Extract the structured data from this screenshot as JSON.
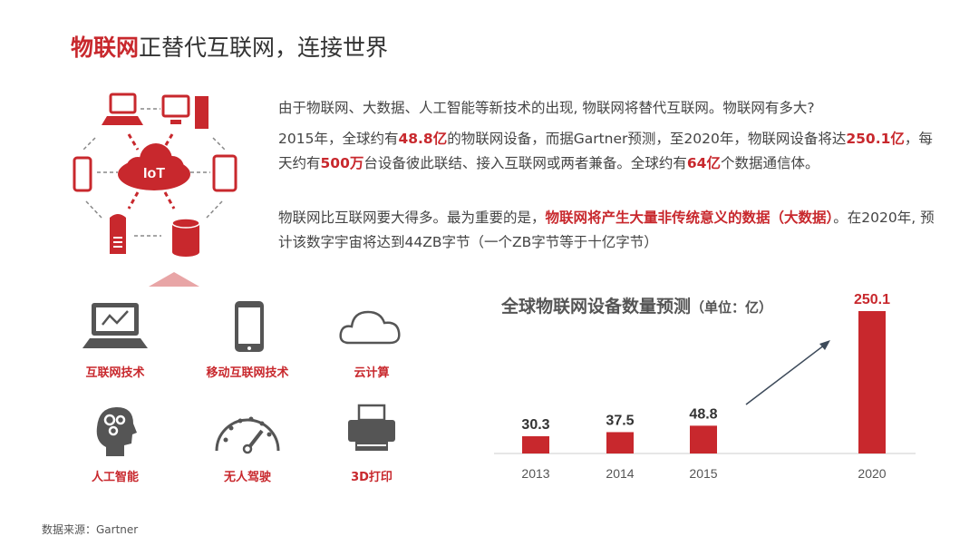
{
  "title": {
    "highlight": "物联网",
    "rest": "正替代互联网，连接世界"
  },
  "diagram": {
    "center_label": "IoT",
    "icons": [
      "laptop-icon",
      "desktop-icon",
      "phone-icon",
      "tablet-icon",
      "server-icon",
      "database-icon",
      "cloud-icon"
    ]
  },
  "paragraphs": [
    [
      {
        "t": "由于物联网、大数据、人工智能等新技术的出现, 物联网将替代互联网。物联网有多大?",
        "em": false
      }
    ],
    [
      {
        "t": "2015年，全球约有",
        "em": false
      },
      {
        "t": "48.8亿",
        "em": true
      },
      {
        "t": "的物联网设备，而据Gartner预测，至2020年，物联网设备将达",
        "em": false
      },
      {
        "t": "250.1亿",
        "em": true
      },
      {
        "t": "，每天约有",
        "em": false
      },
      {
        "t": "500万",
        "em": true
      },
      {
        "t": "台设备彼此联结、接入互联网或两者兼备。全球约有",
        "em": false
      },
      {
        "t": "64亿",
        "em": true
      },
      {
        "t": "个数据通信体。",
        "em": false
      }
    ],
    [
      {
        "t": "物联网比互联网要大得多。最为重要的是，",
        "em": false
      },
      {
        "t": "物联网将产生大量非传统意义的数据（大数据）",
        "em": true
      },
      {
        "t": "。在2020年, 预计该数字宇宙将达到44ZB字节（一个ZB字节等于十亿字节）",
        "em": false
      }
    ]
  ],
  "technologies": [
    {
      "label": "互联网技术",
      "icon": "laptop-chart-icon"
    },
    {
      "label": "移动互联网技术",
      "icon": "smartphone-icon"
    },
    {
      "label": "云计算",
      "icon": "cloud-icon"
    },
    {
      "label": "人工智能",
      "icon": "head-gears-icon"
    },
    {
      "label": "无人驾驶",
      "icon": "speedometer-icon"
    },
    {
      "label": "3D打印",
      "icon": "printer-icon"
    }
  ],
  "chart_data": {
    "type": "bar",
    "title": "全球物联网设备数量预测",
    "unit": "（单位：亿）",
    "categories": [
      "2013",
      "2014",
      "2015",
      "2020"
    ],
    "values": [
      30.3,
      37.5,
      48.8,
      250.1
    ],
    "labels": [
      "30.3",
      "37.5",
      "48.8",
      "250.1"
    ],
    "ylim": [
      0,
      250.1
    ],
    "grid": false,
    "bar_color": "#c8282d",
    "highlight_label_color": "#c8282d"
  },
  "source": "数据来源：Gartner",
  "colors": {
    "accent": "#c8282d",
    "icon_gray": "#555555"
  }
}
